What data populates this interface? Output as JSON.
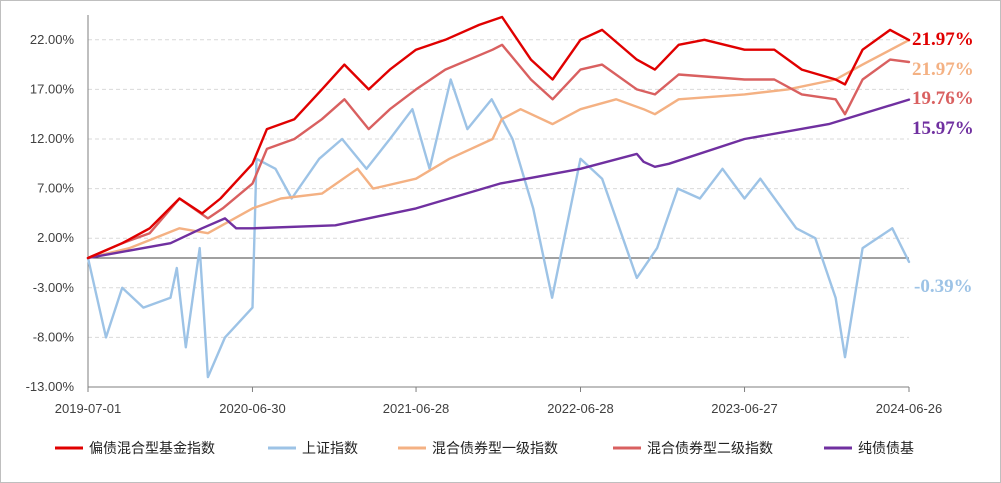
{
  "chart_data": {
    "type": "line",
    "title": "",
    "xlabel": "",
    "ylabel": "",
    "ylim": [
      -13.0,
      24.5
    ],
    "yticks": [
      "22.00%",
      "17.00%",
      "12.00%",
      "7.00%",
      "2.00%",
      "-3.00%",
      "-8.00%",
      "-13.00%"
    ],
    "ytick_values": [
      22,
      17,
      12,
      7,
      2,
      -3,
      -8,
      -13
    ],
    "xticks": [
      "2019-07-01",
      "2020-06-30",
      "2021-06-28",
      "2022-06-28",
      "2023-06-27",
      "2024-06-26"
    ],
    "xlim": [
      "2019-07-01",
      "2024-06-26"
    ],
    "grid": "horizontal dashed",
    "legend_position": "bottom",
    "series": [
      {
        "name": "偏债混合型基金指数",
        "color": "#e00000",
        "end_label": "21.97%",
        "points": [
          [
            "2019-07-01",
            0
          ],
          [
            "2019-09-15",
            1.5
          ],
          [
            "2019-11-15",
            3
          ],
          [
            "2020-01-20",
            6
          ],
          [
            "2020-03-10",
            4.5
          ],
          [
            "2020-04-20",
            6
          ],
          [
            "2020-06-30",
            9.5
          ],
          [
            "2020-08-01",
            13
          ],
          [
            "2020-10-01",
            14
          ],
          [
            "2020-12-01",
            17
          ],
          [
            "2021-01-20",
            19.5
          ],
          [
            "2021-03-15",
            17
          ],
          [
            "2021-05-01",
            19
          ],
          [
            "2021-06-28",
            21
          ],
          [
            "2021-09-01",
            22
          ],
          [
            "2021-11-15",
            23.5
          ],
          [
            "2022-01-05",
            24.3
          ],
          [
            "2022-03-10",
            20
          ],
          [
            "2022-04-27",
            18
          ],
          [
            "2022-06-28",
            22
          ],
          [
            "2022-08-15",
            23
          ],
          [
            "2022-10-31",
            20
          ],
          [
            "2022-12-10",
            19
          ],
          [
            "2023-02-01",
            21.5
          ],
          [
            "2023-03-30",
            22
          ],
          [
            "2023-06-27",
            21
          ],
          [
            "2023-09-01",
            21
          ],
          [
            "2023-11-01",
            19
          ],
          [
            "2024-01-15",
            18
          ],
          [
            "2024-02-05",
            17.5
          ],
          [
            "2024-03-15",
            21
          ],
          [
            "2024-05-15",
            23
          ],
          [
            "2024-06-26",
            21.97
          ]
        ]
      },
      {
        "name": "上证指数",
        "color": "#9dc3e6",
        "end_label": "-0.39%",
        "points": [
          [
            "2019-07-01",
            0
          ],
          [
            "2019-08-10",
            -8
          ],
          [
            "2019-09-15",
            -3
          ],
          [
            "2019-11-01",
            -5
          ],
          [
            "2019-12-31",
            -4
          ],
          [
            "2020-01-14",
            -1
          ],
          [
            "2020-02-03",
            -9
          ],
          [
            "2020-03-05",
            1
          ],
          [
            "2020-03-23",
            -12
          ],
          [
            "2020-04-30",
            -8
          ],
          [
            "2020-06-30",
            -5
          ],
          [
            "2020-07-09",
            10
          ],
          [
            "2020-08-20",
            9
          ],
          [
            "2020-09-25",
            6
          ],
          [
            "2020-11-25",
            10
          ],
          [
            "2021-01-15",
            12
          ],
          [
            "2021-03-10",
            9
          ],
          [
            "2021-05-01",
            12
          ],
          [
            "2021-06-20",
            15
          ],
          [
            "2021-07-28",
            9
          ],
          [
            "2021-09-13",
            18
          ],
          [
            "2021-10-20",
            13
          ],
          [
            "2021-12-13",
            16
          ],
          [
            "2022-01-28",
            12
          ],
          [
            "2022-03-15",
            5
          ],
          [
            "2022-04-26",
            -4
          ],
          [
            "2022-06-28",
            10
          ],
          [
            "2022-08-15",
            8
          ],
          [
            "2022-10-31",
            -2
          ],
          [
            "2022-12-15",
            1
          ],
          [
            "2023-01-30",
            7
          ],
          [
            "2023-03-20",
            6
          ],
          [
            "2023-05-09",
            9
          ],
          [
            "2023-06-27",
            6
          ],
          [
            "2023-08-01",
            8
          ],
          [
            "2023-10-20",
            3
          ],
          [
            "2023-12-01",
            2
          ],
          [
            "2024-01-15",
            -4
          ],
          [
            "2024-02-05",
            -10
          ],
          [
            "2024-03-15",
            1
          ],
          [
            "2024-05-20",
            3
          ],
          [
            "2024-06-26",
            -0.39
          ]
        ]
      },
      {
        "name": "混合债券型一级指数",
        "color": "#f4b183",
        "end_label": "21.97%",
        "points": [
          [
            "2019-07-01",
            0
          ],
          [
            "2019-10-01",
            1
          ],
          [
            "2020-01-20",
            3
          ],
          [
            "2020-03-23",
            2.5
          ],
          [
            "2020-06-30",
            5
          ],
          [
            "2020-09-01",
            6
          ],
          [
            "2020-12-01",
            6.5
          ],
          [
            "2021-02-18",
            9
          ],
          [
            "2021-03-25",
            7
          ],
          [
            "2021-06-28",
            8
          ],
          [
            "2021-09-10",
            10
          ],
          [
            "2021-12-15",
            12
          ],
          [
            "2022-01-04",
            14
          ],
          [
            "2022-02-15",
            15
          ],
          [
            "2022-04-27",
            13.5
          ],
          [
            "2022-06-28",
            15
          ],
          [
            "2022-09-15",
            16
          ],
          [
            "2022-11-15",
            15
          ],
          [
            "2022-12-10",
            14.5
          ],
          [
            "2023-02-01",
            16
          ],
          [
            "2023-06-27",
            16.5
          ],
          [
            "2023-10-01",
            17
          ],
          [
            "2024-01-15",
            18
          ],
          [
            "2024-03-15",
            19.5
          ],
          [
            "2024-06-26",
            21.97
          ]
        ]
      },
      {
        "name": "混合债券型二级指数",
        "color": "#d96060",
        "end_label": "19.76%",
        "points": [
          [
            "2019-07-01",
            0
          ],
          [
            "2019-09-15",
            1.5
          ],
          [
            "2019-11-15",
            2.5
          ],
          [
            "2020-01-20",
            6
          ],
          [
            "2020-03-23",
            4
          ],
          [
            "2020-04-25",
            5
          ],
          [
            "2020-06-30",
            7.5
          ],
          [
            "2020-08-01",
            11
          ],
          [
            "2020-10-01",
            12
          ],
          [
            "2020-12-01",
            14
          ],
          [
            "2021-01-20",
            16
          ],
          [
            "2021-03-15",
            13
          ],
          [
            "2021-05-01",
            15
          ],
          [
            "2021-06-28",
            17
          ],
          [
            "2021-09-01",
            19
          ],
          [
            "2021-12-15",
            21
          ],
          [
            "2022-01-05",
            21.5
          ],
          [
            "2022-03-10",
            18
          ],
          [
            "2022-04-27",
            16
          ],
          [
            "2022-06-28",
            19
          ],
          [
            "2022-08-15",
            19.5
          ],
          [
            "2022-10-31",
            17
          ],
          [
            "2022-12-10",
            16.5
          ],
          [
            "2023-02-01",
            18.5
          ],
          [
            "2023-06-27",
            18
          ],
          [
            "2023-09-01",
            18
          ],
          [
            "2023-11-01",
            16.5
          ],
          [
            "2024-01-15",
            16
          ],
          [
            "2024-02-05",
            14.5
          ],
          [
            "2024-03-15",
            18
          ],
          [
            "2024-05-15",
            20
          ],
          [
            "2024-06-26",
            19.76
          ]
        ]
      },
      {
        "name": "纯债债基",
        "color": "#7030a0",
        "end_label": "15.97%",
        "points": [
          [
            "2019-07-01",
            0
          ],
          [
            "2019-12-31",
            1.5
          ],
          [
            "2020-03-10",
            3
          ],
          [
            "2020-04-30",
            4
          ],
          [
            "2020-05-25",
            3
          ],
          [
            "2020-06-30",
            3
          ],
          [
            "2020-12-31",
            3.3
          ],
          [
            "2021-06-28",
            5
          ],
          [
            "2021-12-31",
            7.5
          ],
          [
            "2022-06-28",
            9
          ],
          [
            "2022-10-31",
            10.5
          ],
          [
            "2022-11-15",
            9.7
          ],
          [
            "2022-12-10",
            9.2
          ],
          [
            "2023-01-10",
            9.5
          ],
          [
            "2023-06-27",
            12
          ],
          [
            "2023-12-31",
            13.5
          ],
          [
            "2024-06-26",
            15.97
          ]
        ]
      }
    ]
  }
}
